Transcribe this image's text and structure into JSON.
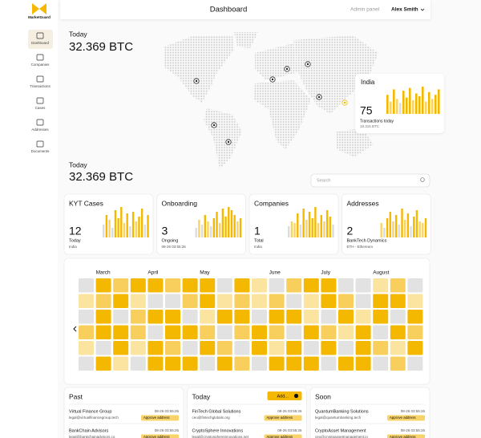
{
  "brand": "MarketGuard",
  "nav": [
    "Dashboard",
    "Companies",
    "Transactions",
    "Cases",
    "Addresses",
    "Documents"
  ],
  "header": {
    "title": "Dashboard",
    "admin": "Admin panel",
    "user": "Alex Smith"
  },
  "hero": {
    "label": "Today",
    "amount": "32.369 BTC"
  },
  "map_card": {
    "country": "India",
    "count": 75,
    "caption": "Transactions today",
    "amount": "19.315 BTC",
    "bars": [
      70,
      45,
      90,
      55,
      40,
      85,
      60,
      95,
      50,
      75,
      65,
      100,
      45,
      80,
      55,
      70,
      90
    ]
  },
  "summary": {
    "label": "Today",
    "amount": "32.369 BTC"
  },
  "search": {
    "placeholder": "Search"
  },
  "cards": [
    {
      "title": "KYT Cases",
      "value": 12,
      "line1": "Today",
      "line2": "India",
      "bars": [
        40,
        70,
        55,
        30,
        85,
        60,
        95,
        45,
        75,
        35,
        80,
        50,
        65,
        90,
        40,
        70
      ]
    },
    {
      "title": "Onboarding",
      "value": 3,
      "line1": "Ongoing",
      "line2": "08-26 03:55:26",
      "bars": [
        30,
        55,
        40,
        70,
        50,
        35,
        60,
        80,
        45,
        90,
        65,
        95,
        85,
        70,
        50,
        60
      ]
    },
    {
      "title": "Companies",
      "value": 1,
      "line1": "Total",
      "line2": "India",
      "bars": [
        35,
        50,
        45,
        75,
        40,
        90,
        55,
        80,
        60,
        95,
        45,
        70,
        50,
        85,
        65,
        40
      ]
    },
    {
      "title": "Addresses",
      "value": 2,
      "line1": "BankTech Dynamics",
      "line2": "ETH - Ethereum",
      "bars": [
        45,
        30,
        60,
        80,
        50,
        70,
        40,
        90,
        55,
        75,
        35,
        65,
        85,
        50,
        45,
        60
      ]
    }
  ],
  "calendar": {
    "months": [
      "March",
      "April",
      "May",
      "June",
      "July",
      "August"
    ],
    "palette": [
      "#e2e2e2",
      "#fbe3a0",
      "#f8cf5c",
      "#f5b800"
    ],
    "levels": [
      [
        0,
        3,
        2,
        3,
        3,
        2,
        3,
        3,
        0,
        3,
        1,
        0,
        2,
        3,
        3,
        0,
        0,
        1,
        2,
        0
      ],
      [
        1,
        2,
        3,
        1,
        0,
        0,
        2,
        3,
        1,
        2,
        1,
        2,
        0,
        1,
        3,
        2,
        0,
        3,
        3,
        1
      ],
      [
        0,
        3,
        0,
        2,
        3,
        3,
        0,
        1,
        3,
        3,
        0,
        3,
        3,
        1,
        0,
        3,
        1,
        3,
        0,
        3
      ],
      [
        2,
        3,
        3,
        2,
        0,
        3,
        3,
        2,
        0,
        2,
        3,
        2,
        0,
        3,
        2,
        1,
        3,
        0,
        3,
        2
      ],
      [
        1,
        0,
        3,
        1,
        3,
        2,
        0,
        3,
        2,
        0,
        3,
        1,
        3,
        0,
        3,
        0,
        3,
        2,
        1,
        3
      ],
      [
        0,
        3,
        1,
        0,
        3,
        3,
        3,
        0,
        3,
        2,
        0,
        3,
        3,
        3,
        0,
        3,
        3,
        0,
        2,
        0
      ]
    ]
  },
  "lists": [
    {
      "title": "Past",
      "items": [
        {
          "name": "Virtual Finance Group",
          "email": "legal@virtualfinancegroup.tech",
          "time": "08-26 03:55:26",
          "action": "Approve address"
        },
        {
          "name": "BankChain Advisors",
          "email": "legal@bankchainadvisors.co",
          "time": "08-26 03:55:26",
          "action": "Approve address"
        }
      ]
    },
    {
      "title": "Today",
      "button": "Add...",
      "items": [
        {
          "name": "FinTech Global Solutions",
          "email": "ceo@fintechglobals.org",
          "time": "08-26 03:55:26",
          "action": "Approve address"
        },
        {
          "name": "CryptoSphere Innovations",
          "email": "legal@cryptosphereinnovations.net",
          "time": "08-26 03:55:26",
          "action": "Approve address"
        }
      ]
    },
    {
      "title": "Soon",
      "items": [
        {
          "name": "QuantumBanking Solutions",
          "email": "legal@quantumbanking.tech",
          "time": "08-26 03:55:26",
          "action": "Approve address"
        },
        {
          "name": "CryptoAsset Management",
          "email": "ceo@cryptoassetmanagement.io",
          "time": "08-26 03:55:26",
          "action": "Approve address"
        }
      ]
    }
  ]
}
